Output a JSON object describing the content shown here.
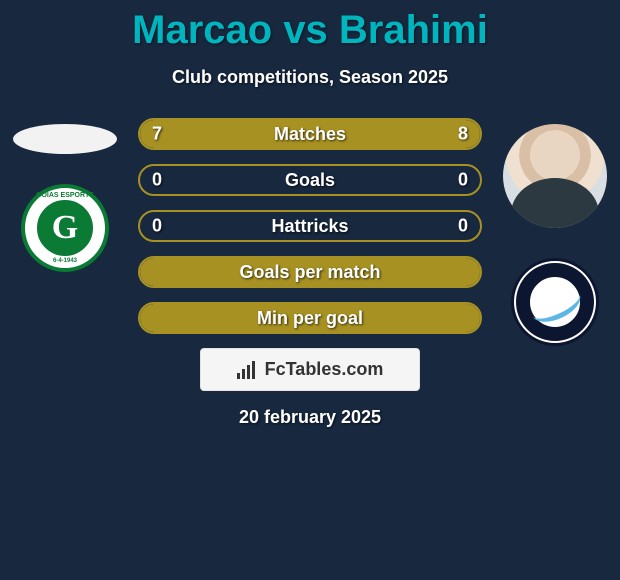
{
  "title": "Marcao vs Brahimi",
  "title_color": "#00b5bd",
  "subtitle": "Club competitions, Season 2025",
  "background_color": "#17283f",
  "left_player": {
    "name": "Marcao",
    "has_photo": false,
    "club": "Goias",
    "badge_letter": "G",
    "badge_text_top": "GOIAS ESPORTE",
    "badge_text_bottom": "6-4-1943"
  },
  "right_player": {
    "name": "Brahimi",
    "has_photo": true,
    "club": "FC Wil 1900"
  },
  "bars": [
    {
      "label": "Matches",
      "left": "7",
      "right": "8",
      "left_pct": 46,
      "right_pct": 54,
      "fill_color": "#a79123",
      "border_color": "#a79123",
      "show_values": true
    },
    {
      "label": "Goals",
      "left": "0",
      "right": "0",
      "left_pct": 0,
      "right_pct": 0,
      "fill_color": "#a79123",
      "border_color": "#a79123",
      "show_values": true
    },
    {
      "label": "Hattricks",
      "left": "0",
      "right": "0",
      "left_pct": 0,
      "right_pct": 0,
      "fill_color": "#a79123",
      "border_color": "#a79123",
      "show_values": true
    },
    {
      "label": "Goals per match",
      "left": "",
      "right": "",
      "left_pct": 100,
      "right_pct": 0,
      "fill_color": "#a79123",
      "border_color": "#a79123",
      "show_values": false
    },
    {
      "label": "Min per goal",
      "left": "",
      "right": "",
      "left_pct": 100,
      "right_pct": 0,
      "fill_color": "#a79123",
      "border_color": "#a79123",
      "show_values": false
    }
  ],
  "brand": "FcTables.com",
  "date": "20 february 2025"
}
